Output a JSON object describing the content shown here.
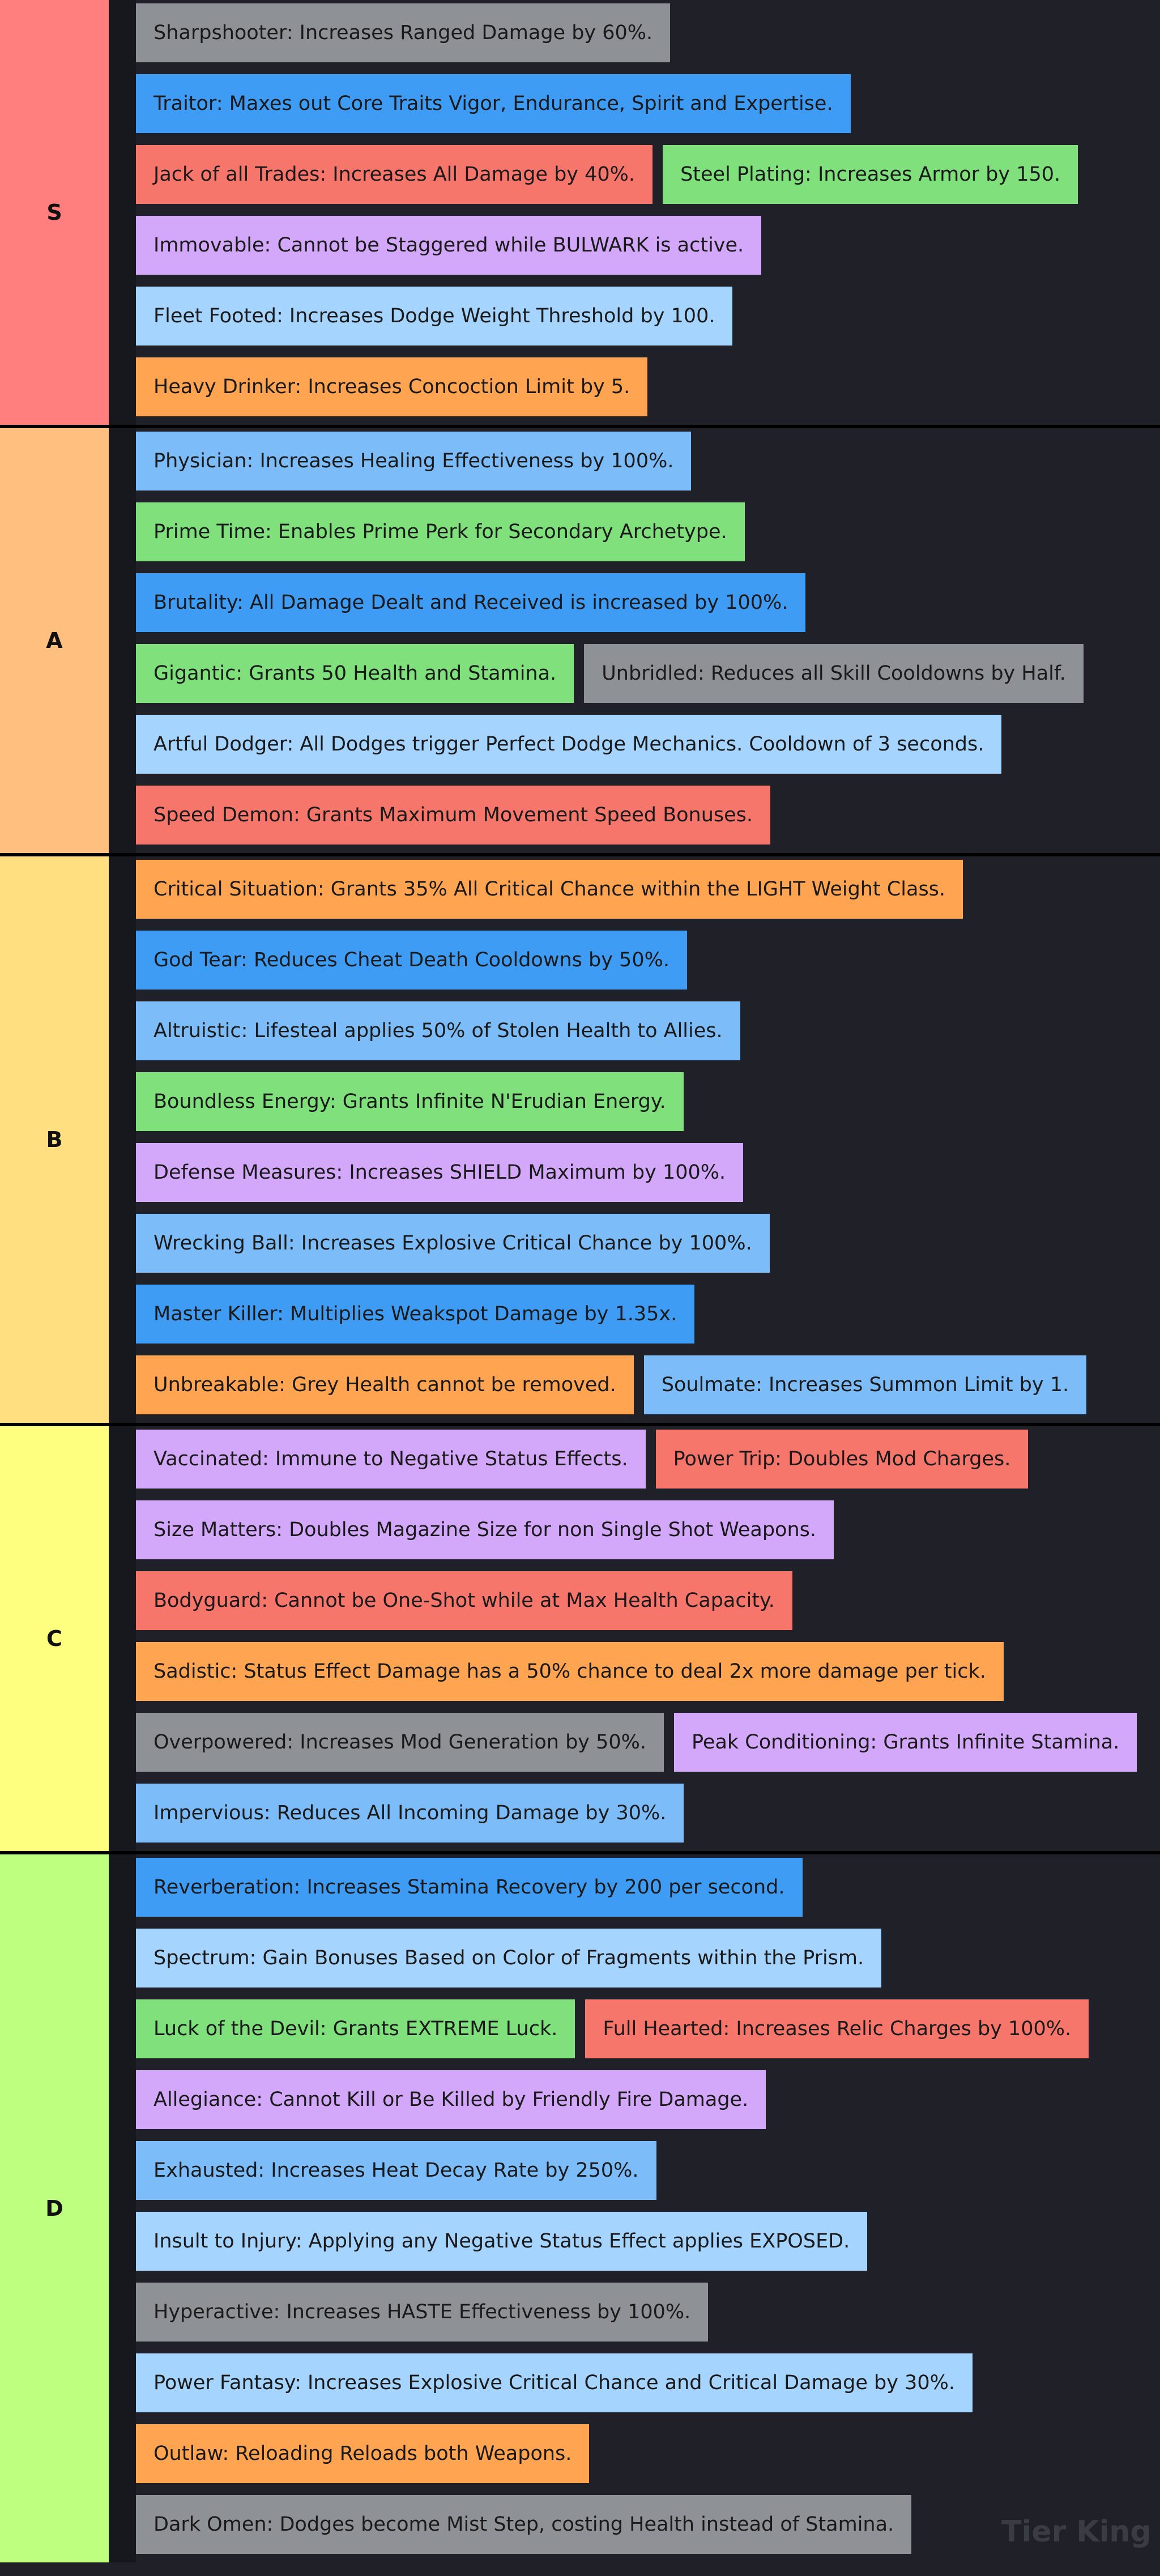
{
  "tiers": [
    {
      "label": "S",
      "color": "#ff7f7f",
      "rows": [
        [
          {
            "text": "Sharpshooter: Increases Ranged Damage by 60%.",
            "color": "#8e9196"
          }
        ],
        [
          {
            "text": "Traitor: Maxes out Core Traits Vigor, Endurance, Spirit and Expertise.",
            "color": "#3f9cf4"
          }
        ],
        [
          {
            "text": "Jack of all Trades: Increases All Damage by 40%.",
            "color": "#f7766c"
          },
          {
            "text": "Steel Plating: Increases Armor by 150.",
            "color": "#7fe07c"
          }
        ],
        [
          {
            "text": "Immovable: Cannot be Staggered while BULWARK is active.",
            "color": "#d3a8fa"
          }
        ],
        [
          {
            "text": "Fleet Footed: Increases Dodge Weight Threshold by 100.",
            "color": "#a5d4ff"
          }
        ],
        [
          {
            "text": "Heavy Drinker: Increases Concoction Limit by 5.",
            "color": "#ffa451"
          }
        ]
      ]
    },
    {
      "label": "A",
      "color": "#ffbf7f",
      "rows": [
        [
          {
            "text": "Physician: Increases Healing Effectiveness by 100%.",
            "color": "#7cbcf8"
          }
        ],
        [
          {
            "text": "Prime Time: Enables Prime Perk for Secondary Archetype.",
            "color": "#7fe07c"
          }
        ],
        [
          {
            "text": "Brutality: All Damage Dealt and Received is increased by 100%.",
            "color": "#3f9cf4"
          }
        ],
        [
          {
            "text": "Gigantic: Grants 50 Health and Stamina.",
            "color": "#7fe07c"
          },
          {
            "text": "Unbridled: Reduces all Skill Cooldowns by Half.",
            "color": "#8e9196"
          }
        ],
        [
          {
            "text": "Artful Dodger: All Dodges trigger Perfect Dodge Mechanics. Cooldown of 3 seconds.",
            "color": "#a5d4ff"
          }
        ],
        [
          {
            "text": "Speed Demon: Grants Maximum Movement Speed Bonuses.",
            "color": "#f7766c"
          }
        ]
      ]
    },
    {
      "label": "B",
      "color": "#ffdf7f",
      "rows": [
        [
          {
            "text": "Critical Situation: Grants 35% All Critical Chance within the LIGHT Weight Class.",
            "color": "#ffa451"
          }
        ],
        [
          {
            "text": "God Tear: Reduces Cheat Death Cooldowns by 50%.",
            "color": "#3f9cf4"
          }
        ],
        [
          {
            "text": "Altruistic: Lifesteal applies 50% of Stolen Health to Allies.",
            "color": "#7cbcf8"
          }
        ],
        [
          {
            "text": "Boundless Energy: Grants Infinite N'Erudian Energy.",
            "color": "#7fe07c"
          }
        ],
        [
          {
            "text": "Defense Measures: Increases SHIELD Maximum by 100%.",
            "color": "#d3a8fa"
          }
        ],
        [
          {
            "text": "Wrecking Ball: Increases Explosive Critical Chance by 100%.",
            "color": "#7cbcf8"
          }
        ],
        [
          {
            "text": "Master Killer: Multiplies Weakspot Damage by 1.35x.",
            "color": "#3f9cf4"
          }
        ],
        [
          {
            "text": "Unbreakable: Grey Health cannot be removed.",
            "color": "#ffa451"
          },
          {
            "text": "Soulmate: Increases Summon Limit by 1.",
            "color": "#7cbcf8"
          }
        ]
      ]
    },
    {
      "label": "C",
      "color": "#ffff7f",
      "rows": [
        [
          {
            "text": "Vaccinated: Immune to Negative Status Effects.",
            "color": "#d3a8fa"
          },
          {
            "text": "Power Trip: Doubles Mod Charges.",
            "color": "#f7766c"
          }
        ],
        [
          {
            "text": "Size Matters: Doubles Magazine Size for non Single Shot Weapons.",
            "color": "#d3a8fa"
          }
        ],
        [
          {
            "text": "Bodyguard: Cannot be One-Shot while at Max Health Capacity.",
            "color": "#f7766c"
          }
        ],
        [
          {
            "text": "Sadistic: Status Effect Damage has a 50% chance to deal 2x more damage per tick.",
            "color": "#ffa451"
          }
        ],
        [
          {
            "text": "Overpowered: Increases Mod Generation by 50%.",
            "color": "#8e9196"
          },
          {
            "text": "Peak Conditioning: Grants Infinite Stamina.",
            "color": "#d3a8fa"
          }
        ],
        [
          {
            "text": "Impervious: Reduces All Incoming Damage by 30%.",
            "color": "#7cbcf8"
          }
        ]
      ]
    },
    {
      "label": "D",
      "color": "#bfff7f",
      "rows": [
        [
          {
            "text": "Reverberation: Increases Stamina Recovery by 200 per second.",
            "color": "#3f9cf4"
          }
        ],
        [
          {
            "text": "Spectrum: Gain Bonuses Based on Color of Fragments within the Prism.",
            "color": "#a5d4ff"
          }
        ],
        [
          {
            "text": "Luck of the Devil: Grants EXTREME Luck.",
            "color": "#7fe07c"
          },
          {
            "text": "Full Hearted: Increases Relic Charges by 100%.",
            "color": "#f7766c"
          }
        ],
        [
          {
            "text": "Allegiance: Cannot Kill or Be Killed by Friendly Fire Damage.",
            "color": "#d3a8fa"
          }
        ],
        [
          {
            "text": "Exhausted: Increases Heat Decay Rate by 250%.",
            "color": "#7cbcf8"
          }
        ],
        [
          {
            "text": "Insult to Injury: Applying any Negative Status Effect applies EXPOSED.",
            "color": "#a5d4ff"
          }
        ],
        [
          {
            "text": "Hyperactive: Increases HASTE Effectiveness by 100%.",
            "color": "#8e9196"
          }
        ],
        [
          {
            "text": "Power Fantasy: Increases Explosive Critical Chance and Critical Damage by 30%.",
            "color": "#a5d4ff"
          }
        ],
        [
          {
            "text": "Outlaw: Reloading Reloads both Weapons.",
            "color": "#ffa451"
          }
        ],
        [
          {
            "text": "Dark Omen: Dodges become Mist Step, costing Health instead of Stamina.",
            "color": "#8e9196"
          }
        ]
      ]
    }
  ],
  "watermark": "Tier King"
}
